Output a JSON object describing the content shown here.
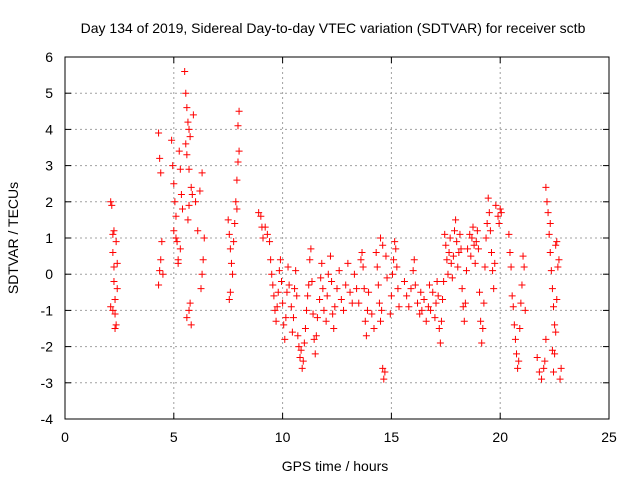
{
  "chart_data": {
    "type": "scatter",
    "title": "Day 134 of 2019, Sidereal Day-to-day VTEC variation (SDTVAR) for receiver sctb",
    "xlabel": "GPS time / hours",
    "ylabel": "SDTVAR / TECUs",
    "xlim": [
      0,
      25
    ],
    "ylim": [
      -4,
      6
    ],
    "xticks": [
      "0",
      "5",
      "10",
      "15",
      "20",
      "25"
    ],
    "yticks": [
      "-4",
      "-3",
      "-2",
      "-1",
      "0",
      "1",
      "2",
      "3",
      "4",
      "5",
      "6"
    ],
    "grid": true,
    "marker": "+",
    "color": "#ff0000",
    "series": [
      {
        "name": "SDTVAR",
        "points": [
          [
            2.1,
            2.0
          ],
          [
            2.15,
            1.9
          ],
          [
            2.2,
            1.1
          ],
          [
            2.2,
            0.6
          ],
          [
            2.25,
            0.2
          ],
          [
            2.25,
            -0.2
          ],
          [
            2.3,
            -0.7
          ],
          [
            2.3,
            -1.1
          ],
          [
            2.35,
            -1.4
          ],
          [
            2.2,
            -1.0
          ],
          [
            2.4,
            0.3
          ],
          [
            2.4,
            -0.4
          ],
          [
            2.1,
            -0.9
          ],
          [
            2.3,
            -1.5
          ],
          [
            2.35,
            0.9
          ],
          [
            2.25,
            1.2
          ],
          [
            4.3,
            3.9
          ],
          [
            4.35,
            3.2
          ],
          [
            4.4,
            2.8
          ],
          [
            4.45,
            0.9
          ],
          [
            4.4,
            0.4
          ],
          [
            4.5,
            0.0
          ],
          [
            4.3,
            -0.3
          ],
          [
            4.35,
            0.1
          ],
          [
            4.9,
            3.7
          ],
          [
            4.95,
            3.0
          ],
          [
            5.0,
            2.5
          ],
          [
            5.05,
            2.0
          ],
          [
            5.1,
            1.6
          ],
          [
            5.0,
            1.2
          ],
          [
            5.15,
            0.9
          ],
          [
            5.2,
            0.4
          ],
          [
            5.25,
            3.4
          ],
          [
            5.3,
            2.9
          ],
          [
            5.35,
            2.2
          ],
          [
            5.4,
            1.8
          ],
          [
            5.3,
            0.7
          ],
          [
            5.2,
            0.3
          ],
          [
            5.1,
            1.0
          ],
          [
            5.5,
            5.6
          ],
          [
            5.55,
            5.0
          ],
          [
            5.6,
            4.6
          ],
          [
            5.65,
            4.2
          ],
          [
            5.7,
            4.0
          ],
          [
            5.75,
            3.8
          ],
          [
            5.6,
            3.3
          ],
          [
            5.7,
            2.9
          ],
          [
            5.8,
            2.4
          ],
          [
            5.7,
            1.9
          ],
          [
            5.65,
            1.5
          ],
          [
            5.75,
            -0.8
          ],
          [
            5.7,
            -1.0
          ],
          [
            5.8,
            -1.4
          ],
          [
            5.6,
            -1.2
          ],
          [
            5.85,
            2.2
          ],
          [
            5.9,
            4.4
          ],
          [
            5.55,
            3.6
          ],
          [
            6.0,
            2.0
          ],
          [
            6.1,
            1.2
          ],
          [
            6.2,
            2.3
          ],
          [
            6.3,
            2.8
          ],
          [
            6.35,
            0.4
          ],
          [
            6.4,
            1.0
          ],
          [
            6.3,
            0.0
          ],
          [
            6.25,
            -0.4
          ],
          [
            7.5,
            1.5
          ],
          [
            7.55,
            1.1
          ],
          [
            7.6,
            0.7
          ],
          [
            7.65,
            0.3
          ],
          [
            7.7,
            0.0
          ],
          [
            7.6,
            -0.5
          ],
          [
            7.55,
            -0.7
          ],
          [
            7.75,
            0.9
          ],
          [
            7.8,
            1.4
          ],
          [
            7.85,
            2.0
          ],
          [
            7.9,
            2.6
          ],
          [
            7.95,
            3.1
          ],
          [
            8.0,
            3.4
          ],
          [
            7.95,
            4.1
          ],
          [
            8.0,
            4.5
          ],
          [
            7.9,
            1.8
          ],
          [
            8.9,
            1.7
          ],
          [
            9.0,
            1.6
          ],
          [
            9.05,
            1.3
          ],
          [
            9.1,
            1.0
          ],
          [
            9.2,
            1.3
          ],
          [
            9.3,
            1.1
          ],
          [
            9.4,
            0.9
          ],
          [
            9.45,
            0.4
          ],
          [
            9.5,
            0.0
          ],
          [
            9.55,
            -0.3
          ],
          [
            9.6,
            -0.6
          ],
          [
            9.65,
            -1.0
          ],
          [
            9.7,
            -1.3
          ],
          [
            9.75,
            -0.9
          ],
          [
            9.8,
            -0.5
          ],
          [
            9.85,
            0.1
          ],
          [
            9.9,
            0.4
          ],
          [
            9.95,
            -0.2
          ],
          [
            10.0,
            -0.8
          ],
          [
            10.05,
            -1.4
          ],
          [
            10.1,
            -1.8
          ],
          [
            10.15,
            -1.2
          ],
          [
            10.2,
            -0.5
          ],
          [
            10.25,
            0.2
          ],
          [
            10.3,
            -0.3
          ],
          [
            10.4,
            -0.9
          ],
          [
            10.45,
            -1.6
          ],
          [
            10.5,
            -1.2
          ],
          [
            10.55,
            -0.4
          ],
          [
            10.6,
            0.1
          ],
          [
            10.65,
            -0.6
          ],
          [
            10.7,
            -1.7
          ],
          [
            10.75,
            -2.0
          ],
          [
            10.8,
            -2.3
          ],
          [
            10.85,
            -2.1
          ],
          [
            10.9,
            -2.6
          ],
          [
            10.95,
            -2.4
          ],
          [
            11.0,
            -1.9
          ],
          [
            11.05,
            -1.5
          ],
          [
            11.1,
            -1.0
          ],
          [
            11.15,
            -0.6
          ],
          [
            11.2,
            -0.3
          ],
          [
            11.25,
            0.4
          ],
          [
            11.3,
            0.7
          ],
          [
            11.35,
            -0.2
          ],
          [
            11.4,
            -1.1
          ],
          [
            11.45,
            -1.8
          ],
          [
            11.5,
            -2.2
          ],
          [
            11.55,
            -1.7
          ],
          [
            11.6,
            -1.2
          ],
          [
            11.7,
            -0.7
          ],
          [
            11.75,
            -0.1
          ],
          [
            11.8,
            0.3
          ],
          [
            11.85,
            -0.4
          ],
          [
            11.9,
            -1.0
          ],
          [
            12.0,
            -1.3
          ],
          [
            12.05,
            -0.6
          ],
          [
            12.1,
            0.0
          ],
          [
            12.2,
            0.5
          ],
          [
            12.25,
            -0.2
          ],
          [
            12.3,
            -1.1
          ],
          [
            12.35,
            -1.5
          ],
          [
            12.4,
            -0.9
          ],
          [
            12.5,
            -0.4
          ],
          [
            12.6,
            0.1
          ],
          [
            12.7,
            -0.7
          ],
          [
            12.8,
            -1.0
          ],
          [
            12.9,
            -0.3
          ],
          [
            13.0,
            0.3
          ],
          [
            13.1,
            -0.5
          ],
          [
            13.2,
            -0.8
          ],
          [
            13.3,
            0.0
          ],
          [
            13.4,
            -0.4
          ],
          [
            13.5,
            -0.8
          ],
          [
            13.6,
            0.4
          ],
          [
            13.65,
            0.6
          ],
          [
            13.7,
            0.2
          ],
          [
            13.75,
            -0.4
          ],
          [
            13.8,
            -1.3
          ],
          [
            13.85,
            -1.7
          ],
          [
            13.9,
            -1.0
          ],
          [
            13.95,
            -0.5
          ],
          [
            14.1,
            -1.1
          ],
          [
            14.2,
            -1.5
          ],
          [
            14.3,
            0.6
          ],
          [
            14.35,
            0.2
          ],
          [
            14.4,
            -0.3
          ],
          [
            14.45,
            -0.8
          ],
          [
            14.5,
            -1.3
          ],
          [
            14.55,
            -1.0
          ],
          [
            14.6,
            -2.6
          ],
          [
            14.65,
            -2.9
          ],
          [
            14.7,
            -2.7
          ],
          [
            14.5,
            1.0
          ],
          [
            14.6,
            0.8
          ],
          [
            14.75,
            0.5
          ],
          [
            14.8,
            -0.1
          ],
          [
            14.95,
            -1.1
          ],
          [
            15.0,
            -0.6
          ],
          [
            15.05,
            0.0
          ],
          [
            15.1,
            0.4
          ],
          [
            15.15,
            0.9
          ],
          [
            15.2,
            0.7
          ],
          [
            15.25,
            0.2
          ],
          [
            15.3,
            -0.4
          ],
          [
            15.35,
            -0.9
          ],
          [
            15.6,
            -0.2
          ],
          [
            15.7,
            -0.6
          ],
          [
            15.8,
            -0.9
          ],
          [
            15.9,
            -0.4
          ],
          [
            16.0,
            0.1
          ],
          [
            16.05,
            0.4
          ],
          [
            16.1,
            -0.3
          ],
          [
            16.2,
            -0.8
          ],
          [
            16.3,
            -1.1
          ],
          [
            16.35,
            -0.5
          ],
          [
            16.4,
            -1.0
          ],
          [
            16.5,
            -0.7
          ],
          [
            16.6,
            -1.3
          ],
          [
            16.7,
            -0.9
          ],
          [
            16.75,
            -0.3
          ],
          [
            16.8,
            -1.0
          ],
          [
            16.9,
            -0.5
          ],
          [
            17.0,
            -1.2
          ],
          [
            17.05,
            -0.8
          ],
          [
            17.1,
            -0.2
          ],
          [
            17.15,
            -0.6
          ],
          [
            17.2,
            -1.5
          ],
          [
            17.25,
            -1.9
          ],
          [
            17.3,
            -1.3
          ],
          [
            17.35,
            -0.7
          ],
          [
            17.4,
            -0.2
          ],
          [
            17.45,
            1.1
          ],
          [
            17.5,
            0.8
          ],
          [
            17.55,
            0.4
          ],
          [
            17.6,
            0.0
          ],
          [
            17.65,
            0.6
          ],
          [
            17.7,
            1.0
          ],
          [
            17.75,
            0.3
          ],
          [
            17.8,
            -0.1
          ],
          [
            17.85,
            0.5
          ],
          [
            17.9,
            1.2
          ],
          [
            17.95,
            1.5
          ],
          [
            18.0,
            0.9
          ],
          [
            18.05,
            0.2
          ],
          [
            18.1,
            0.6
          ],
          [
            18.15,
            1.1
          ],
          [
            18.2,
            0.7
          ],
          [
            18.25,
            -0.4
          ],
          [
            18.3,
            -0.9
          ],
          [
            18.35,
            -1.3
          ],
          [
            18.4,
            -0.8
          ],
          [
            18.45,
            0.1
          ],
          [
            18.5,
            0.7
          ],
          [
            18.6,
            1.1
          ],
          [
            18.65,
            0.5
          ],
          [
            18.7,
            1.0
          ],
          [
            18.75,
            1.3
          ],
          [
            18.8,
            0.8
          ],
          [
            18.85,
            0.3
          ],
          [
            18.9,
            0.9
          ],
          [
            18.95,
            1.2
          ],
          [
            19.0,
            0.7
          ],
          [
            19.05,
            -0.5
          ],
          [
            19.1,
            -1.3
          ],
          [
            19.15,
            -1.9
          ],
          [
            19.2,
            -1.5
          ],
          [
            19.25,
            -0.8
          ],
          [
            19.3,
            0.2
          ],
          [
            19.35,
            1.0
          ],
          [
            19.4,
            1.4
          ],
          [
            19.45,
            2.1
          ],
          [
            19.5,
            1.7
          ],
          [
            19.55,
            1.2
          ],
          [
            19.6,
            0.6
          ],
          [
            19.65,
            0.1
          ],
          [
            19.7,
            -0.4
          ],
          [
            19.75,
            0.3
          ],
          [
            19.8,
            1.9
          ],
          [
            19.9,
            1.6
          ],
          [
            19.95,
            1.4
          ],
          [
            20.0,
            1.8
          ],
          [
            20.05,
            1.7
          ],
          [
            20.4,
            1.1
          ],
          [
            20.45,
            0.6
          ],
          [
            20.5,
            0.2
          ],
          [
            20.55,
            -0.6
          ],
          [
            20.6,
            -0.9
          ],
          [
            20.65,
            -1.4
          ],
          [
            20.7,
            -1.8
          ],
          [
            20.75,
            -2.2
          ],
          [
            20.8,
            -2.6
          ],
          [
            20.85,
            -2.4
          ],
          [
            20.9,
            -1.5
          ],
          [
            20.95,
            -0.8
          ],
          [
            21.0,
            -0.3
          ],
          [
            21.05,
            0.5
          ],
          [
            21.1,
            0.2
          ],
          [
            21.15,
            -1.0
          ],
          [
            21.7,
            -2.3
          ],
          [
            21.8,
            -2.7
          ],
          [
            21.9,
            -2.9
          ],
          [
            22.0,
            -2.6
          ],
          [
            22.05,
            -2.4
          ],
          [
            22.1,
            -1.8
          ],
          [
            22.1,
            2.4
          ],
          [
            22.15,
            2.0
          ],
          [
            22.2,
            1.7
          ],
          [
            22.25,
            1.1
          ],
          [
            22.3,
            0.6
          ],
          [
            22.35,
            0.1
          ],
          [
            22.4,
            -0.4
          ],
          [
            22.45,
            -0.9
          ],
          [
            22.5,
            -1.4
          ],
          [
            22.4,
            -2.1
          ],
          [
            22.45,
            -2.7
          ],
          [
            22.5,
            -2.2
          ],
          [
            22.55,
            -1.6
          ],
          [
            22.6,
            -0.7
          ],
          [
            22.65,
            0.2
          ],
          [
            22.6,
            0.9
          ],
          [
            22.7,
            0.4
          ],
          [
            22.75,
            -2.9
          ],
          [
            22.8,
            -2.6
          ],
          [
            22.3,
            1.4
          ],
          [
            22.55,
            0.8
          ]
        ]
      }
    ]
  }
}
